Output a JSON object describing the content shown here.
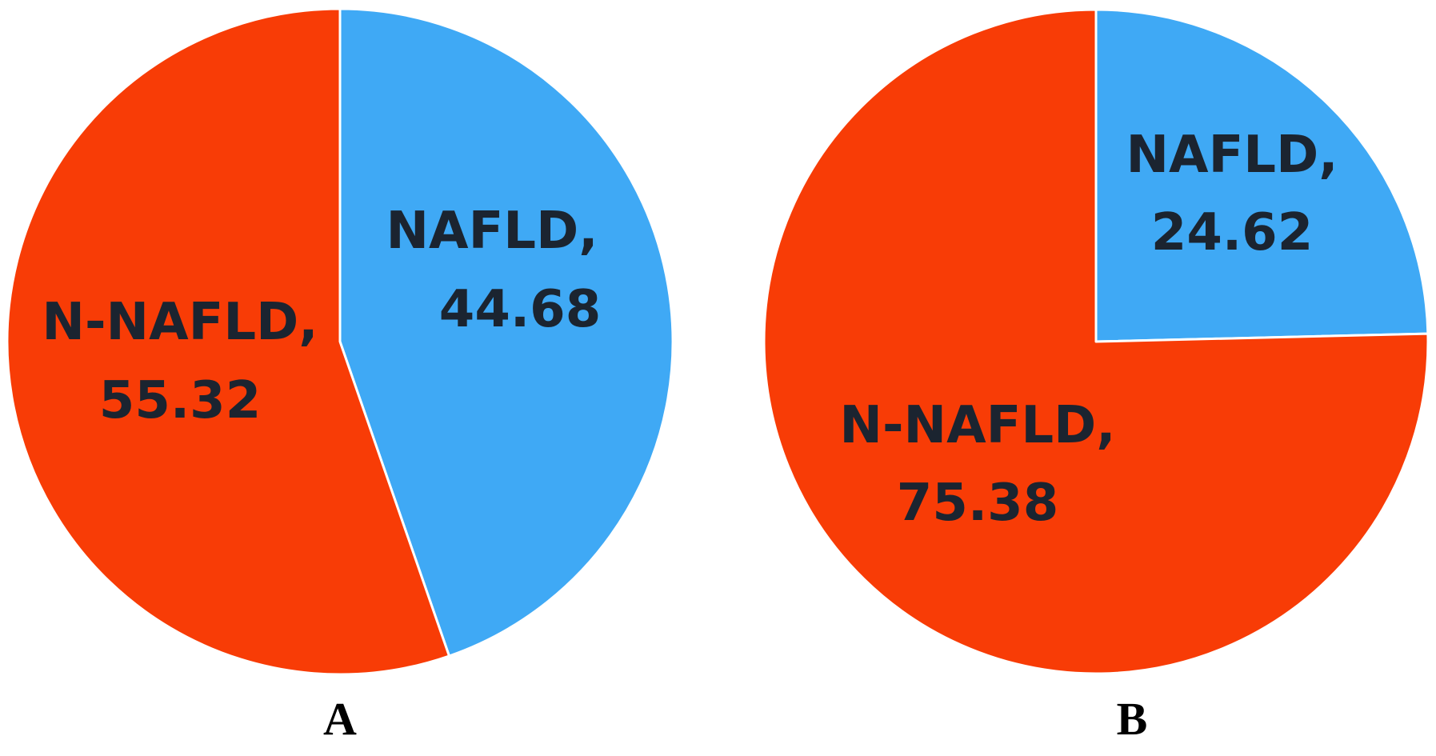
{
  "chart_data": [
    {
      "type": "pie",
      "panel_label": "A",
      "slices": [
        {
          "label": "NAFLD,",
          "value": 44.68,
          "value_text": "44.68",
          "color": "#3fa9f5"
        },
        {
          "label": "N-NAFLD,",
          "value": 55.32,
          "value_text": "55.32",
          "color": "#f83c06"
        }
      ]
    },
    {
      "type": "pie",
      "panel_label": "B",
      "slices": [
        {
          "label": "NAFLD,",
          "value": 24.62,
          "value_text": "24.62",
          "color": "#3fa9f5"
        },
        {
          "label": "N-NAFLD,",
          "value": 75.38,
          "value_text": "75.38",
          "color": "#f83c06"
        }
      ]
    }
  ]
}
